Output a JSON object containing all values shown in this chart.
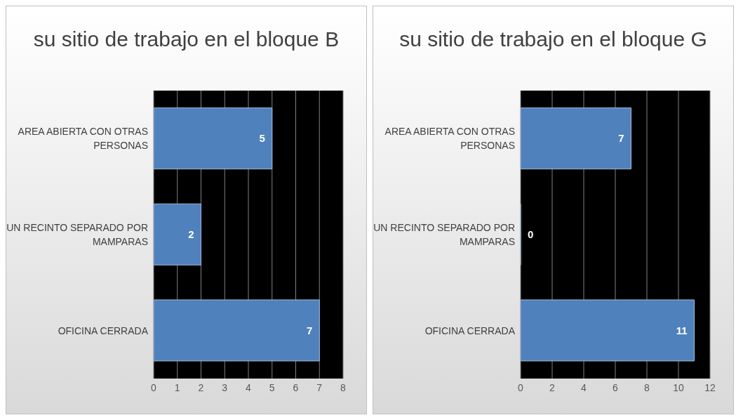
{
  "chart_data": [
    {
      "type": "bar",
      "orientation": "horizontal",
      "title": "su sitio de trabajo en el bloque B",
      "categories": [
        "AREA ABIERTA CON OTRAS PERSONAS",
        "UN RECINTO SEPARADO POR MAMPARAS",
        "OFICINA CERRADA"
      ],
      "values": [
        5,
        2,
        7
      ],
      "color": "#4f81bd",
      "xlim": [
        0,
        8
      ],
      "xticks": [
        0,
        1,
        2,
        3,
        4,
        5,
        6,
        7,
        8
      ],
      "grid": "x",
      "data_labels": true
    },
    {
      "type": "bar",
      "orientation": "horizontal",
      "title": "su sitio de trabajo en el bloque G",
      "categories": [
        "AREA ABIERTA CON OTRAS PERSONAS",
        "UN RECINTO SEPARADO POR MAMPARAS",
        "OFICINA CERRADA"
      ],
      "values": [
        7,
        0,
        11
      ],
      "color": "#4f81bd",
      "xlim": [
        0,
        12
      ],
      "xticks": [
        0,
        2,
        4,
        6,
        8,
        10,
        12
      ],
      "grid": "x",
      "data_labels": true
    }
  ]
}
